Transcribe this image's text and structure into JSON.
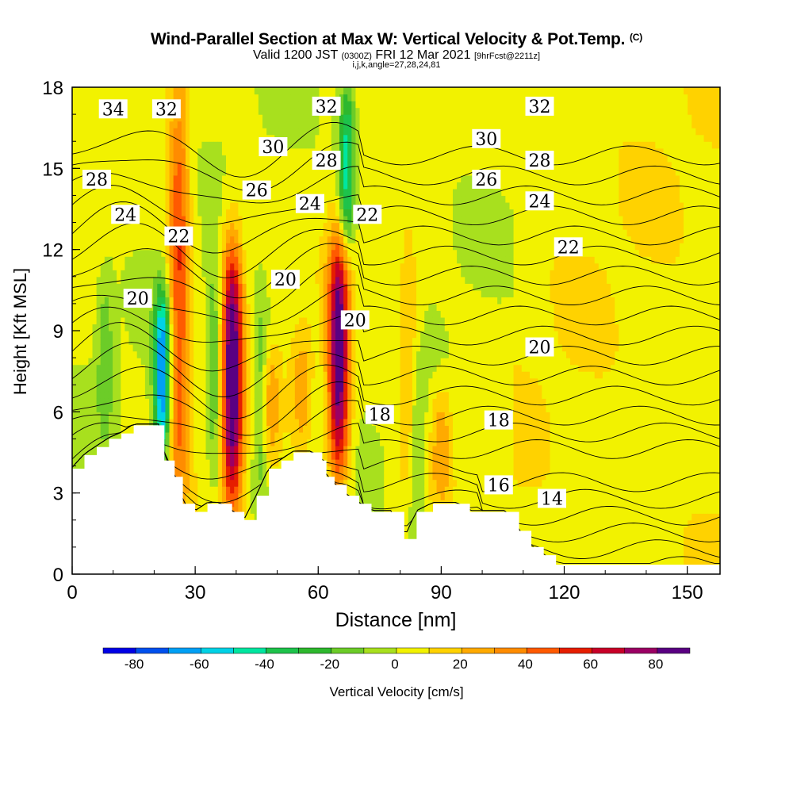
{
  "header": {
    "title_main": "Wind-Parallel Section at Max W: Vertical Velocity & Pot.Temp.",
    "title_tag": "(C)",
    "valid_prefix": "Valid 1200 JST",
    "valid_utc": "(0300Z)",
    "valid_date": "FRI 12 Mar 2021",
    "forecast_tag": "[9hrFcst@2211z]",
    "indices": "i,j,k,angle=27,28,24,81"
  },
  "chart_data": {
    "type": "heatmap",
    "xlabel": "Distance [nm]",
    "ylabel": "Height [Kft MSL]",
    "xlim": [
      0,
      158
    ],
    "ylim": [
      0,
      18
    ],
    "x_ticks": [
      0,
      30,
      60,
      90,
      120,
      150
    ],
    "y_ticks": [
      0,
      3,
      6,
      9,
      12,
      15,
      18
    ],
    "grid": false,
    "shaded_field": "Vertical Velocity",
    "contour_field": "Potential Temperature (C)",
    "colorbar": {
      "label": "Vertical Velocity [cm/s]",
      "levels": [
        -90,
        -80,
        -70,
        -60,
        -50,
        -40,
        -30,
        -20,
        -10,
        0,
        10,
        20,
        30,
        40,
        50,
        60,
        70,
        80,
        90
      ],
      "tick_labels": [
        -80,
        -60,
        -40,
        -20,
        0,
        20,
        40,
        60,
        80
      ],
      "colors": [
        "#0000e6",
        "#0050ee",
        "#00a0f5",
        "#00d2e6",
        "#00e6a0",
        "#1ec34b",
        "#2eb82e",
        "#6ccc28",
        "#a8e01e",
        "#f2f200",
        "#ffd200",
        "#ffaa00",
        "#ff8c00",
        "#ff5a00",
        "#e61e00",
        "#c80028",
        "#9b0064",
        "#5a0082"
      ]
    },
    "terrain_top": [
      [
        0,
        3.9
      ],
      [
        3,
        4.4
      ],
      [
        6,
        4.7
      ],
      [
        9,
        5.0
      ],
      [
        12,
        5.2
      ],
      [
        15,
        5.5
      ],
      [
        22,
        5.5
      ],
      [
        22.5,
        4.2
      ],
      [
        25,
        3.6
      ],
      [
        27,
        2.6
      ],
      [
        30,
        2.3
      ],
      [
        33,
        2.6
      ],
      [
        36,
        2.6
      ],
      [
        39,
        2.3
      ],
      [
        42,
        2.0
      ],
      [
        45,
        2.9
      ],
      [
        48,
        3.9
      ],
      [
        51,
        4.2
      ],
      [
        54,
        4.5
      ],
      [
        58,
        4.5
      ],
      [
        61,
        4.2
      ],
      [
        62,
        3.6
      ],
      [
        64,
        3.3
      ],
      [
        67,
        2.9
      ],
      [
        70,
        2.6
      ],
      [
        73,
        2.3
      ],
      [
        78,
        2.3
      ],
      [
        81,
        1.3
      ],
      [
        84,
        2.3
      ],
      [
        88,
        2.6
      ],
      [
        94,
        2.6
      ],
      [
        97,
        2.3
      ],
      [
        106,
        2.3
      ],
      [
        109,
        1.6
      ],
      [
        112,
        1.0
      ],
      [
        115,
        0.7
      ],
      [
        118,
        0.35
      ],
      [
        158,
        0.35
      ]
    ],
    "updrafts": [
      {
        "x": 26,
        "zbot": 2.6,
        "ztop": 18,
        "wmax": 50
      },
      {
        "x": 39,
        "zbot": 2.3,
        "ztop": 12.5,
        "wmax": 88
      },
      {
        "x": 48,
        "zbot": 3.9,
        "ztop": 8.5,
        "wmax": 25
      },
      {
        "x": 56,
        "zbot": 4.5,
        "ztop": 9.0,
        "wmax": 22
      },
      {
        "x": 65,
        "zbot": 3.3,
        "ztop": 12.5,
        "wmax": 86
      },
      {
        "x": 82,
        "zbot": 3.0,
        "ztop": 12.0,
        "wmax": 22
      },
      {
        "x": 90,
        "zbot": 2.6,
        "ztop": 7.0,
        "wmax": 25
      }
    ],
    "downdrafts": [
      {
        "x": 22,
        "zbot": 4.2,
        "ztop": 10.5,
        "wmin": -75
      },
      {
        "x": 35,
        "zbot": 3.0,
        "ztop": 12.0,
        "wmin": -25
      },
      {
        "x": 46,
        "zbot": 3.0,
        "ztop": 10.0,
        "wmin": -30
      },
      {
        "x": 67,
        "zbot": 12.0,
        "ztop": 18,
        "wmin": -50
      },
      {
        "x": 84,
        "zbot": 0.5,
        "ztop": 8.0,
        "wmin": -20
      },
      {
        "x": 8,
        "zbot": 5.0,
        "ztop": 11.0,
        "wmin": -20
      }
    ],
    "contour_labels": [
      {
        "text": "34",
        "x": 10,
        "y": 17.2
      },
      {
        "text": "32",
        "x": 23,
        "y": 17.2
      },
      {
        "text": "32",
        "x": 62,
        "y": 17.3
      },
      {
        "text": "32",
        "x": 114,
        "y": 17.3
      },
      {
        "text": "30",
        "x": 49,
        "y": 15.8
      },
      {
        "text": "30",
        "x": 101,
        "y": 16.1
      },
      {
        "text": "28",
        "x": 6,
        "y": 14.6
      },
      {
        "text": "28",
        "x": 62,
        "y": 15.3
      },
      {
        "text": "28",
        "x": 114,
        "y": 15.3
      },
      {
        "text": "26",
        "x": 45,
        "y": 14.2
      },
      {
        "text": "26",
        "x": 101,
        "y": 14.6
      },
      {
        "text": "24",
        "x": 13,
        "y": 13.3
      },
      {
        "text": "24",
        "x": 58,
        "y": 13.7
      },
      {
        "text": "24",
        "x": 114,
        "y": 13.8
      },
      {
        "text": "22",
        "x": 26,
        "y": 12.5
      },
      {
        "text": "22",
        "x": 72,
        "y": 13.3
      },
      {
        "text": "22",
        "x": 121,
        "y": 12.1
      },
      {
        "text": "20",
        "x": 16,
        "y": 10.2
      },
      {
        "text": "20",
        "x": 52,
        "y": 10.9
      },
      {
        "text": "20",
        "x": 69,
        "y": 9.4
      },
      {
        "text": "20",
        "x": 114,
        "y": 8.4
      },
      {
        "text": "18",
        "x": 75,
        "y": 5.9
      },
      {
        "text": "18",
        "x": 104,
        "y": 5.7
      },
      {
        "text": "16",
        "x": 104,
        "y": 3.3
      },
      {
        "text": "14",
        "x": 117,
        "y": 2.8
      }
    ]
  }
}
